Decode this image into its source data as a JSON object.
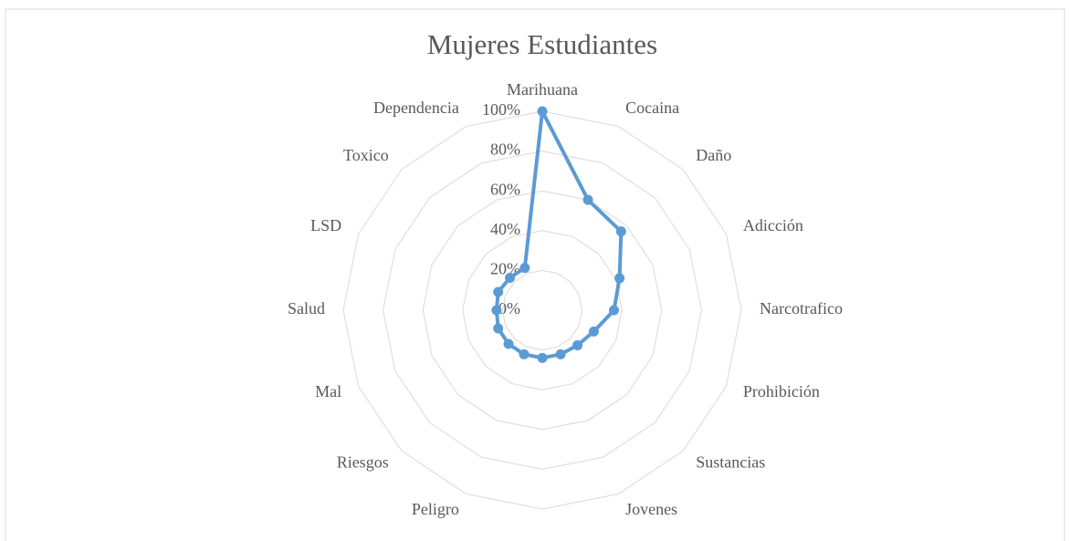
{
  "chart_data": {
    "type": "radar",
    "title": "Mujeres Estudiantes",
    "categories": [
      "Marihuana",
      "Cocaina",
      "Daño",
      "Adicción",
      "Narcotrafico",
      "Prohibición",
      "Sustancias",
      "Jovenes",
      null,
      "Peligro",
      "Riesgos",
      "Mal",
      "Salud",
      "LSD",
      "Toxico",
      "Dependencia"
    ],
    "values": [
      100,
      60,
      56,
      42,
      36,
      28,
      25,
      24,
      24,
      24,
      24,
      24,
      23,
      24,
      23,
      23
    ],
    "color": "#5b9bd5",
    "ylim": [
      0,
      100
    ],
    "yticks": [
      {
        "value": 0,
        "label": "0%"
      },
      {
        "value": 20,
        "label": "20%"
      },
      {
        "value": 40,
        "label": "40%"
      },
      {
        "value": 60,
        "label": "60%"
      },
      {
        "value": 80,
        "label": "80%"
      },
      {
        "value": 100,
        "label": "100%"
      }
    ],
    "grid": true
  }
}
